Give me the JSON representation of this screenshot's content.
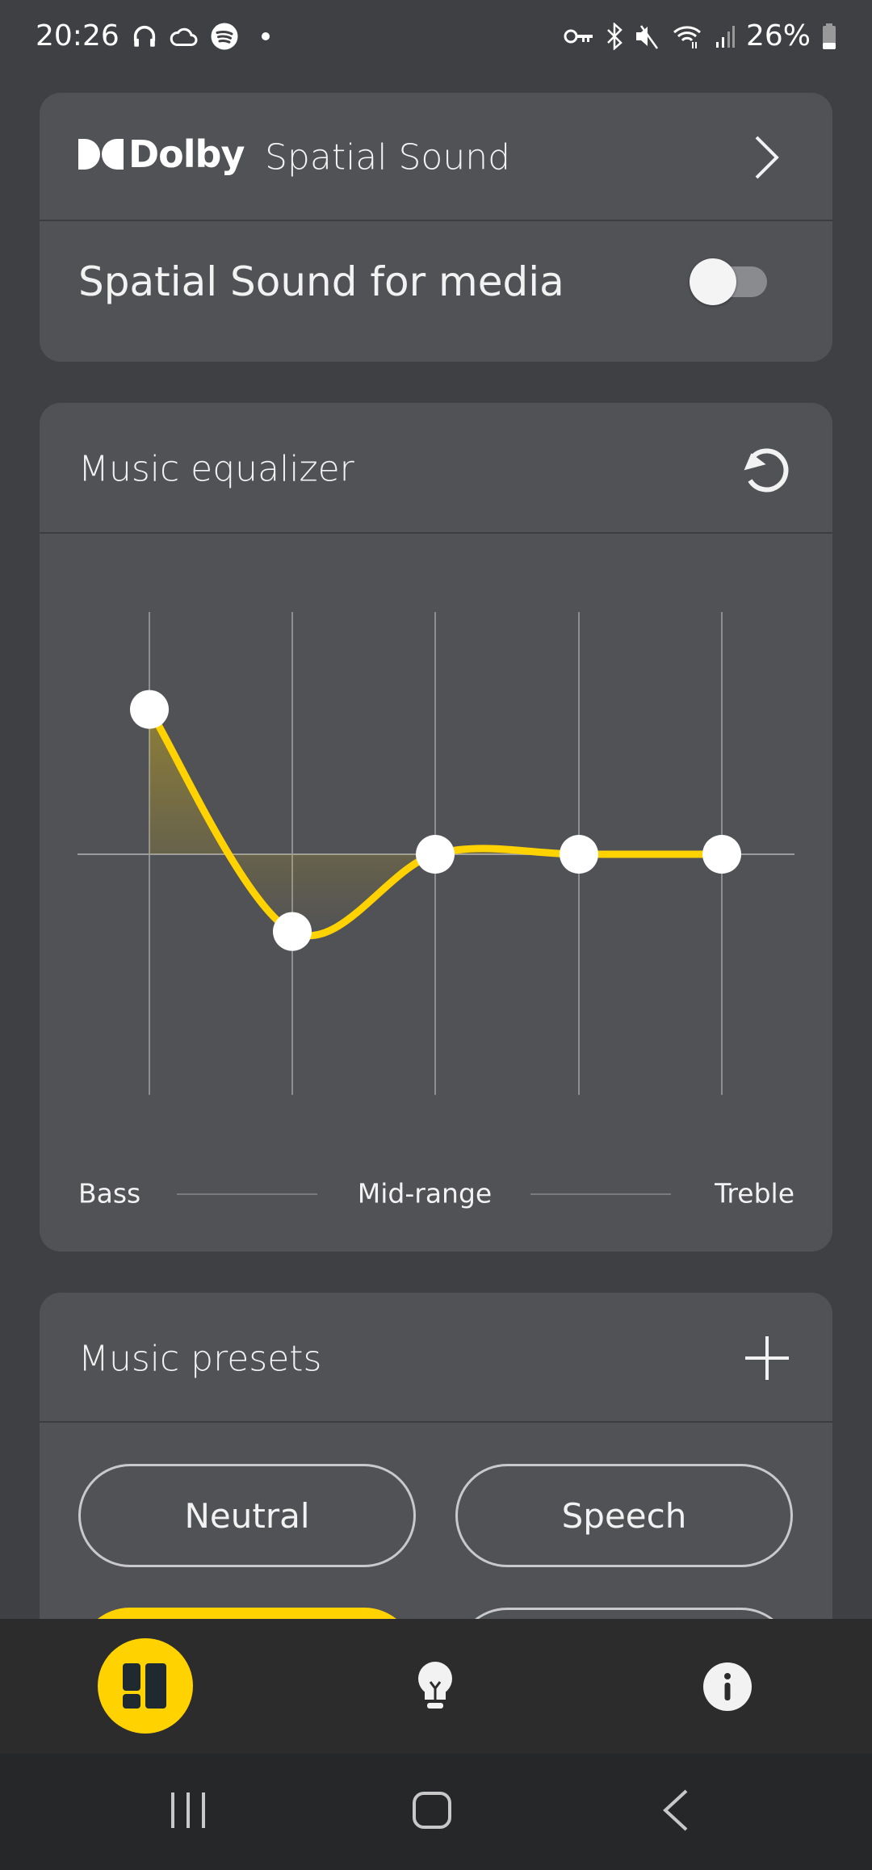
{
  "status_bar": {
    "time": "20:26",
    "left_icons": [
      "headphones-icon",
      "cloud-icon",
      "spotify-icon",
      "notification-dot-icon"
    ],
    "right_icons": [
      "vpn-key-icon",
      "bluetooth-icon",
      "mute-icon",
      "wifi-icon",
      "signal-icon"
    ],
    "battery": "26%"
  },
  "dolby_card": {
    "logo_text": "Dolby",
    "title": "Spatial Sound",
    "toggle_label": "Spatial Sound for media",
    "toggle_on": false
  },
  "equalizer": {
    "title": "Music equalizer",
    "labels": {
      "bass": "Bass",
      "mid": "Mid-range",
      "treble": "Treble"
    },
    "accent": "#ffd200",
    "chart_data": {
      "type": "line",
      "bands": 5,
      "values": [
        0.6,
        -0.32,
        0,
        0,
        0
      ],
      "ylim": [
        -1,
        1
      ]
    }
  },
  "presets": {
    "title": "Music presets",
    "items": [
      {
        "label": "Neutral",
        "selected": false
      },
      {
        "label": "Speech",
        "selected": false
      },
      {
        "label": "",
        "selected": true
      },
      {
        "label": "",
        "selected": false
      }
    ]
  },
  "bottom_nav": {
    "items": [
      "dashboard-icon",
      "tips-bulb-icon",
      "info-icon"
    ],
    "active": 0
  },
  "system_nav": [
    "recents-icon",
    "home-icon",
    "back-icon"
  ],
  "colors": {
    "background": "#3f4044",
    "card": "#515256",
    "accent": "#ffd200"
  }
}
